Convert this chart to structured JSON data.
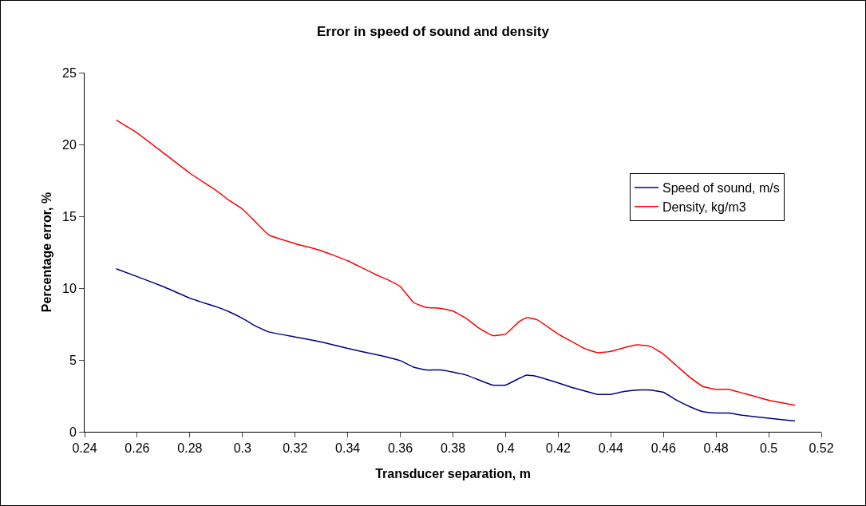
{
  "chart_data": {
    "type": "line",
    "title": "Error in speed of sound and density",
    "xlabel": "Transducer separation, m",
    "ylabel": "Percentage error, %",
    "xlim": [
      0.24,
      0.52
    ],
    "xticks": [
      0.24,
      0.26,
      0.28,
      0.3,
      0.32,
      0.34,
      0.36,
      0.38,
      0.4,
      0.42,
      0.44,
      0.46,
      0.48,
      0.5,
      0.52
    ],
    "ylim": [
      0,
      25
    ],
    "yticks": [
      0,
      5,
      10,
      15,
      20,
      25
    ],
    "grid": false,
    "legend": "right",
    "marker": "none",
    "line_style": "solid",
    "x": [
      0.252,
      0.26,
      0.27,
      0.28,
      0.29,
      0.295,
      0.3,
      0.305,
      0.31,
      0.32,
      0.33,
      0.34,
      0.35,
      0.355,
      0.36,
      0.365,
      0.37,
      0.375,
      0.38,
      0.385,
      0.39,
      0.395,
      0.4,
      0.405,
      0.408,
      0.412,
      0.42,
      0.425,
      0.43,
      0.435,
      0.44,
      0.445,
      0.45,
      0.455,
      0.46,
      0.465,
      0.47,
      0.475,
      0.48,
      0.485,
      0.49,
      0.5,
      0.51
    ],
    "series": [
      {
        "name": "Speed of sound, m/s",
        "color": "#000080",
        "values": [
          11.35,
          10.8,
          10.1,
          9.3,
          8.7,
          8.35,
          7.9,
          7.35,
          6.95,
          6.6,
          6.25,
          5.8,
          5.4,
          5.2,
          4.95,
          4.5,
          4.3,
          4.3,
          4.15,
          3.95,
          3.6,
          3.25,
          3.25,
          3.7,
          3.95,
          3.85,
          3.4,
          3.1,
          2.85,
          2.6,
          2.6,
          2.8,
          2.9,
          2.9,
          2.75,
          2.2,
          1.75,
          1.4,
          1.3,
          1.3,
          1.15,
          0.95,
          0.75
        ]
      },
      {
        "name": "Density, kg/m3",
        "color": "#ff0000",
        "values": [
          21.7,
          20.8,
          19.4,
          18.0,
          16.8,
          16.1,
          15.5,
          14.6,
          13.7,
          13.1,
          12.6,
          11.9,
          11.0,
          10.6,
          10.1,
          9.0,
          8.65,
          8.6,
          8.4,
          7.9,
          7.2,
          6.7,
          6.8,
          7.65,
          7.95,
          7.8,
          6.8,
          6.3,
          5.8,
          5.5,
          5.6,
          5.85,
          6.05,
          5.95,
          5.4,
          4.6,
          3.8,
          3.15,
          2.95,
          2.95,
          2.7,
          2.2,
          1.85
        ]
      }
    ]
  }
}
